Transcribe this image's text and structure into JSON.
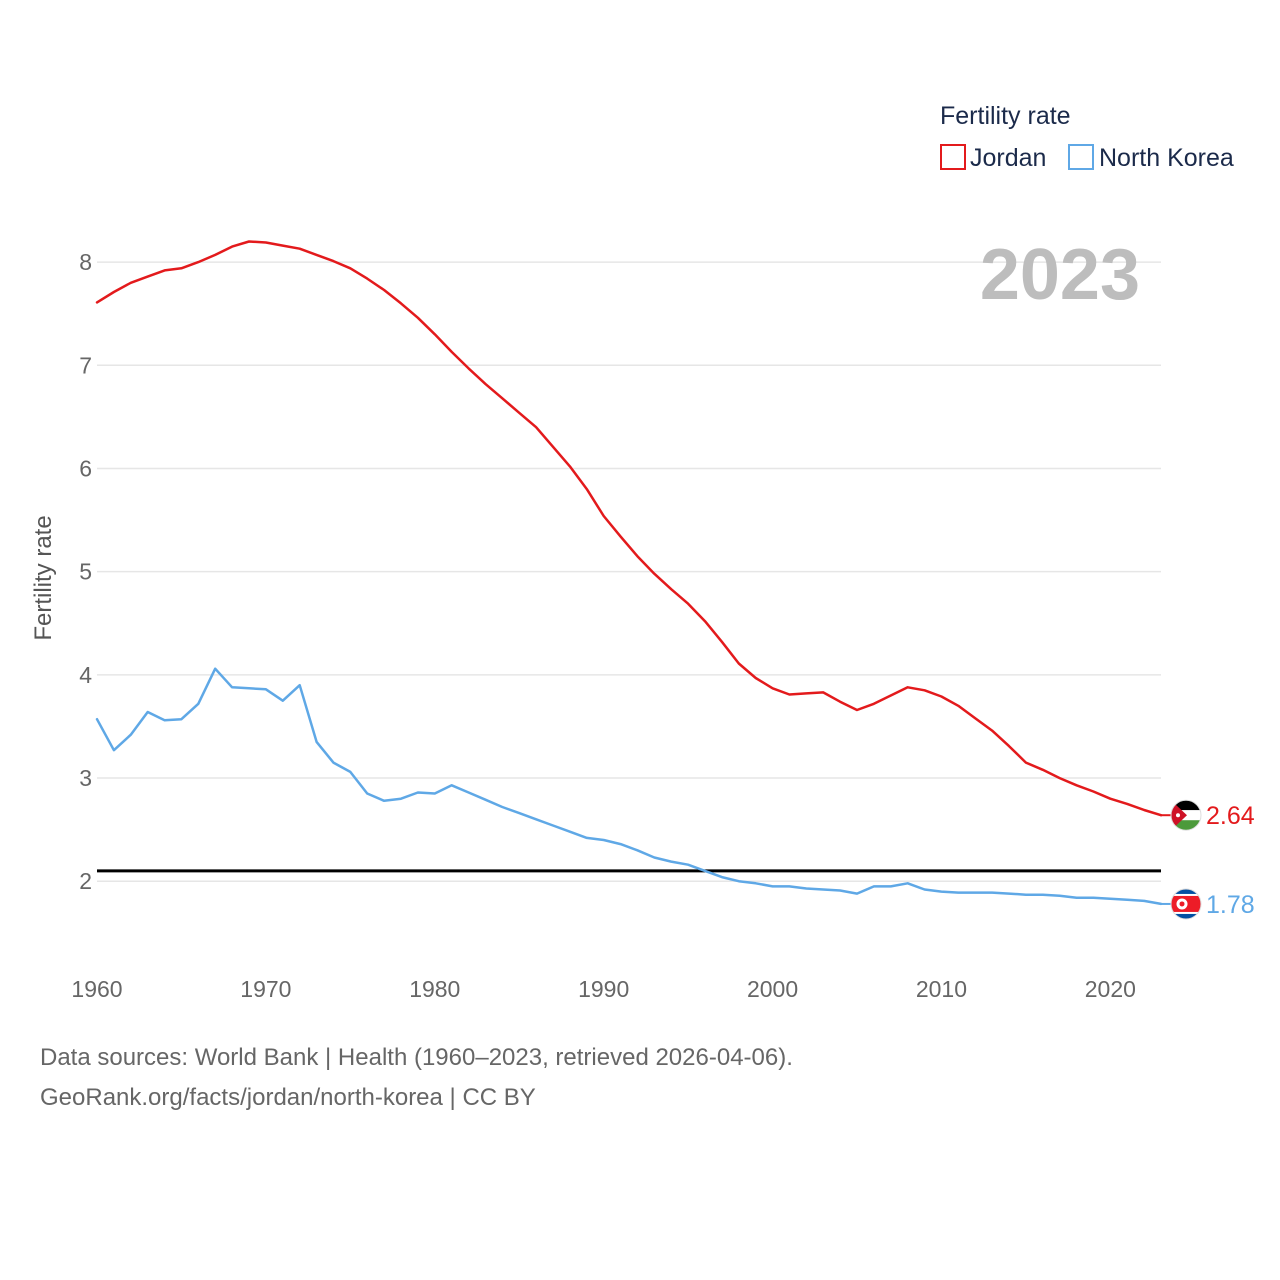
{
  "chart_data": {
    "type": "line",
    "title": "",
    "xlabel": "",
    "ylabel": "Fertility rate",
    "xlim": [
      1960,
      2023
    ],
    "ylim": [
      1.45,
      8.35
    ],
    "x_ticks": [
      1960,
      1970,
      1980,
      1990,
      2000,
      2010,
      2020
    ],
    "y_ticks": [
      2,
      3,
      4,
      5,
      6,
      7,
      8
    ],
    "grid": true,
    "current_year": "2023",
    "legend": {
      "title": "Fertility rate",
      "position": "top-right"
    },
    "reference_line": {
      "y": 2.1,
      "color": "#000000"
    },
    "x": [
      1960,
      1961,
      1962,
      1963,
      1964,
      1965,
      1966,
      1967,
      1968,
      1969,
      1970,
      1971,
      1972,
      1973,
      1974,
      1975,
      1976,
      1977,
      1978,
      1979,
      1980,
      1981,
      1982,
      1983,
      1984,
      1985,
      1986,
      1987,
      1988,
      1989,
      1990,
      1991,
      1992,
      1993,
      1994,
      1995,
      1996,
      1997,
      1998,
      1999,
      2000,
      2001,
      2002,
      2003,
      2004,
      2005,
      2006,
      2007,
      2008,
      2009,
      2010,
      2011,
      2012,
      2013,
      2014,
      2015,
      2016,
      2017,
      2018,
      2019,
      2020,
      2021,
      2022,
      2023
    ],
    "series": [
      {
        "name": "Jordan",
        "color": "#e31a1c",
        "end_label": "2.64",
        "flag": "jordan-flag-icon",
        "values": [
          7.61,
          7.71,
          7.8,
          7.86,
          7.92,
          7.94,
          8.0,
          8.07,
          8.15,
          8.2,
          8.19,
          8.16,
          8.13,
          8.07,
          8.01,
          7.94,
          7.84,
          7.73,
          7.6,
          7.46,
          7.3,
          7.13,
          6.97,
          6.82,
          6.68,
          6.54,
          6.4,
          6.21,
          6.02,
          5.8,
          5.54,
          5.34,
          5.15,
          4.98,
          4.83,
          4.69,
          4.52,
          4.32,
          4.11,
          3.97,
          3.87,
          3.81,
          3.82,
          3.83,
          3.74,
          3.66,
          3.72,
          3.8,
          3.88,
          3.85,
          3.79,
          3.7,
          3.58,
          3.46,
          3.31,
          3.15,
          3.08,
          3.0,
          2.93,
          2.87,
          2.8,
          2.75,
          2.69,
          2.64
        ]
      },
      {
        "name": "North Korea",
        "color": "#5fa8e6",
        "end_label": "1.78",
        "flag": "north-korea-flag-icon",
        "values": [
          3.57,
          3.27,
          3.42,
          3.64,
          3.56,
          3.57,
          3.72,
          4.06,
          3.88,
          3.87,
          3.86,
          3.75,
          3.9,
          3.35,
          3.15,
          3.06,
          2.85,
          2.78,
          2.8,
          2.86,
          2.85,
          2.93,
          2.86,
          2.79,
          2.72,
          2.66,
          2.6,
          2.54,
          2.48,
          2.42,
          2.4,
          2.36,
          2.3,
          2.23,
          2.19,
          2.16,
          2.1,
          2.04,
          2.0,
          1.98,
          1.95,
          1.95,
          1.93,
          1.92,
          1.91,
          1.88,
          1.95,
          1.95,
          1.98,
          1.92,
          1.9,
          1.89,
          1.89,
          1.89,
          1.88,
          1.87,
          1.87,
          1.86,
          1.84,
          1.84,
          1.83,
          1.82,
          1.81,
          1.78
        ]
      }
    ]
  },
  "footer": {
    "line1": "Data sources: World Bank | Health (1960–2023, retrieved 2026-04-06).",
    "line2": "GeoRank.org/facts/jordan/north-korea | CC BY"
  }
}
